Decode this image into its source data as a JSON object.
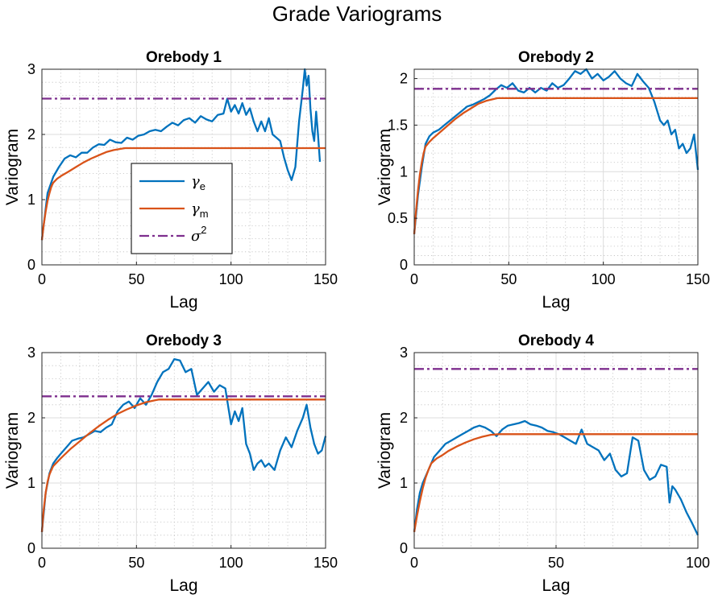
{
  "figure": {
    "title": "Grade Variograms"
  },
  "colors": {
    "experimental": "#0072BD",
    "model": "#D95319",
    "sill": "#7E2F8E",
    "grid_major": "#dcdcdc",
    "grid_minor": "#bfbfbf"
  },
  "legend": {
    "entries": [
      {
        "series": "experimental",
        "symbol": "γ",
        "sub": "e",
        "sup": ""
      },
      {
        "series": "model",
        "symbol": "γ",
        "sub": "m",
        "sup": ""
      },
      {
        "series": "sill",
        "symbol": "σ",
        "sub": "",
        "sup": "2"
      }
    ]
  },
  "chart_data": [
    {
      "type": "line",
      "title": "Orebody 1",
      "xlabel": "Lag",
      "ylabel": "Variogram",
      "xlim": [
        0,
        150
      ],
      "ylim": [
        0,
        3
      ],
      "xticks": [
        0,
        50,
        100,
        150
      ],
      "yticks": [
        0,
        1,
        2,
        3
      ],
      "grid": true,
      "legend_position": "center",
      "series": [
        {
          "name": "γe",
          "style": "solid",
          "x": [
            0,
            3,
            6,
            9,
            12,
            15,
            18,
            21,
            24,
            27,
            30,
            33,
            36,
            39,
            42,
            45,
            48,
            51,
            54,
            57,
            60,
            63,
            66,
            69,
            72,
            75,
            78,
            81,
            84,
            87,
            90,
            93,
            96,
            98,
            100,
            102,
            104,
            106,
            108,
            110,
            112,
            114,
            116,
            118,
            120,
            122,
            124,
            126,
            128,
            130,
            132,
            134,
            136,
            138,
            139,
            140,
            141,
            142,
            143,
            144,
            145,
            146,
            147
          ],
          "values": [
            0.38,
            1.1,
            1.35,
            1.5,
            1.63,
            1.68,
            1.65,
            1.72,
            1.72,
            1.8,
            1.85,
            1.84,
            1.92,
            1.88,
            1.87,
            1.95,
            1.92,
            1.98,
            2.0,
            2.05,
            2.07,
            2.05,
            2.12,
            2.18,
            2.14,
            2.22,
            2.25,
            2.18,
            2.28,
            2.23,
            2.2,
            2.3,
            2.32,
            2.55,
            2.35,
            2.45,
            2.32,
            2.48,
            2.3,
            2.4,
            2.2,
            2.05,
            2.2,
            2.05,
            2.25,
            2.0,
            1.95,
            1.9,
            1.65,
            1.45,
            1.3,
            1.5,
            2.2,
            2.7,
            3.0,
            2.75,
            2.9,
            2.4,
            2.05,
            1.9,
            2.35,
            2.0,
            1.58
          ]
        },
        {
          "name": "γm",
          "style": "solid",
          "x": [
            0,
            1,
            2,
            3,
            4,
            5,
            6,
            8,
            10,
            14,
            18,
            22,
            26,
            30,
            34,
            38,
            42,
            44,
            60,
            80,
            100,
            120,
            150
          ],
          "values": [
            0.38,
            0.62,
            0.82,
            0.98,
            1.1,
            1.2,
            1.26,
            1.32,
            1.36,
            1.43,
            1.5,
            1.57,
            1.63,
            1.68,
            1.73,
            1.76,
            1.78,
            1.79,
            1.79,
            1.79,
            1.79,
            1.79,
            1.79
          ]
        },
        {
          "name": "σ2",
          "style": "dashdot",
          "x": [
            0,
            150
          ],
          "values": [
            2.55,
            2.55
          ]
        }
      ]
    },
    {
      "type": "line",
      "title": "Orebody 2",
      "xlabel": "Lag",
      "ylabel": "Variogram",
      "xlim": [
        0,
        150
      ],
      "ylim": [
        0,
        2.1
      ],
      "xticks": [
        0,
        50,
        100,
        150
      ],
      "yticks": [
        0,
        0.5,
        1,
        1.5,
        2
      ],
      "grid": true,
      "series": [
        {
          "name": "γe",
          "style": "solid",
          "x": [
            0,
            2,
            4,
            6,
            8,
            10,
            13,
            16,
            19,
            22,
            25,
            28,
            31,
            34,
            37,
            40,
            43,
            46,
            49,
            52,
            55,
            58,
            61,
            64,
            67,
            70,
            73,
            76,
            79,
            82,
            85,
            88,
            91,
            94,
            97,
            100,
            103,
            106,
            109,
            112,
            115,
            118,
            121,
            124,
            127,
            130,
            132,
            134,
            136,
            138,
            140,
            142,
            144,
            146,
            148,
            150
          ],
          "values": [
            0.33,
            0.75,
            1.05,
            1.3,
            1.38,
            1.42,
            1.45,
            1.5,
            1.55,
            1.6,
            1.65,
            1.7,
            1.72,
            1.75,
            1.78,
            1.82,
            1.88,
            1.93,
            1.9,
            1.95,
            1.87,
            1.85,
            1.9,
            1.85,
            1.9,
            1.87,
            1.95,
            1.9,
            1.93,
            2.0,
            2.08,
            2.05,
            2.1,
            2.0,
            2.05,
            1.98,
            2.02,
            2.08,
            2.0,
            1.95,
            1.92,
            2.05,
            1.97,
            1.9,
            1.75,
            1.55,
            1.5,
            1.55,
            1.4,
            1.45,
            1.25,
            1.3,
            1.2,
            1.25,
            1.4,
            1.02
          ]
        },
        {
          "name": "γm",
          "style": "solid",
          "x": [
            0,
            1,
            2,
            3,
            4,
            5,
            6,
            8,
            10,
            14,
            18,
            22,
            26,
            30,
            34,
            38,
            42,
            44,
            60,
            80,
            100,
            120,
            150
          ],
          "values": [
            0.33,
            0.58,
            0.8,
            0.97,
            1.1,
            1.2,
            1.27,
            1.32,
            1.36,
            1.43,
            1.5,
            1.57,
            1.63,
            1.68,
            1.73,
            1.76,
            1.78,
            1.79,
            1.79,
            1.79,
            1.79,
            1.79,
            1.79
          ]
        },
        {
          "name": "σ2",
          "style": "dashdot",
          "x": [
            0,
            150
          ],
          "values": [
            1.89,
            1.89
          ]
        }
      ]
    },
    {
      "type": "line",
      "title": "Orebody 3",
      "xlabel": "Lag",
      "ylabel": "Variogram",
      "xlim": [
        0,
        150
      ],
      "ylim": [
        0,
        3
      ],
      "xticks": [
        0,
        50,
        100,
        150
      ],
      "yticks": [
        0,
        1,
        2,
        3
      ],
      "grid": true,
      "series": [
        {
          "name": "γe",
          "style": "solid",
          "x": [
            0,
            2,
            4,
            6,
            8,
            10,
            13,
            16,
            19,
            22,
            25,
            28,
            31,
            34,
            37,
            40,
            43,
            46,
            49,
            52,
            55,
            58,
            61,
            64,
            67,
            70,
            73,
            76,
            79,
            82,
            85,
            88,
            91,
            94,
            97,
            100,
            102,
            104,
            106,
            108,
            110,
            112,
            114,
            116,
            118,
            120,
            123,
            126,
            129,
            132,
            135,
            138,
            140,
            142,
            144,
            146,
            148,
            150
          ],
          "values": [
            0.25,
            0.85,
            1.15,
            1.3,
            1.38,
            1.45,
            1.55,
            1.65,
            1.68,
            1.7,
            1.75,
            1.8,
            1.78,
            1.85,
            1.9,
            2.1,
            2.2,
            2.25,
            2.15,
            2.3,
            2.2,
            2.35,
            2.55,
            2.7,
            2.75,
            2.9,
            2.88,
            2.7,
            2.75,
            2.35,
            2.45,
            2.55,
            2.4,
            2.5,
            2.45,
            1.9,
            2.1,
            1.95,
            2.15,
            1.6,
            1.45,
            1.2,
            1.3,
            1.35,
            1.25,
            1.3,
            1.2,
            1.5,
            1.7,
            1.55,
            1.8,
            2.0,
            2.2,
            1.85,
            1.6,
            1.45,
            1.5,
            1.72
          ]
        },
        {
          "name": "γm",
          "style": "solid",
          "x": [
            0,
            1,
            2,
            3,
            4,
            5,
            6,
            8,
            10,
            15,
            20,
            25,
            30,
            35,
            40,
            45,
            50,
            55,
            60,
            62,
            80,
            100,
            120,
            150
          ],
          "values": [
            0.25,
            0.6,
            0.85,
            1.02,
            1.13,
            1.2,
            1.26,
            1.32,
            1.38,
            1.52,
            1.64,
            1.76,
            1.87,
            1.97,
            2.06,
            2.13,
            2.19,
            2.24,
            2.27,
            2.28,
            2.28,
            2.28,
            2.28,
            2.28
          ]
        },
        {
          "name": "σ2",
          "style": "dashdot",
          "x": [
            0,
            150
          ],
          "values": [
            2.33,
            2.33
          ]
        }
      ]
    },
    {
      "type": "line",
      "title": "Orebody 4",
      "xlabel": "Lag",
      "ylabel": "Variogram",
      "xlim": [
        0,
        100
      ],
      "ylim": [
        0,
        3
      ],
      "xticks": [
        0,
        50,
        100
      ],
      "yticks": [
        0,
        1,
        2,
        3
      ],
      "grid": true,
      "series": [
        {
          "name": "γe",
          "style": "solid",
          "x": [
            0,
            1,
            2,
            3,
            5,
            7,
            9,
            11,
            13,
            15,
            17,
            19,
            21,
            23,
            25,
            27,
            29,
            31,
            33,
            35,
            37,
            39,
            41,
            43,
            45,
            47,
            49,
            51,
            53,
            55,
            57,
            59,
            61,
            63,
            65,
            67,
            69,
            71,
            73,
            75,
            77,
            79,
            81,
            83,
            85,
            87,
            89,
            90,
            91,
            92,
            94,
            96,
            98,
            100
          ],
          "values": [
            0.25,
            0.6,
            0.85,
            1.0,
            1.2,
            1.4,
            1.5,
            1.6,
            1.65,
            1.7,
            1.75,
            1.8,
            1.85,
            1.88,
            1.85,
            1.8,
            1.72,
            1.82,
            1.88,
            1.9,
            1.92,
            1.95,
            1.9,
            1.88,
            1.85,
            1.8,
            1.78,
            1.75,
            1.7,
            1.65,
            1.6,
            1.82,
            1.6,
            1.55,
            1.5,
            1.35,
            1.45,
            1.2,
            1.1,
            1.15,
            1.7,
            1.65,
            1.2,
            1.05,
            1.1,
            1.28,
            1.25,
            0.7,
            0.95,
            0.9,
            0.75,
            0.55,
            0.38,
            0.2
          ]
        },
        {
          "name": "γm",
          "style": "solid",
          "x": [
            0,
            1,
            2,
            3,
            4,
            5,
            6,
            8,
            10,
            12,
            15,
            18,
            21,
            24,
            27,
            30,
            40,
            60,
            80,
            100
          ],
          "values": [
            0.25,
            0.5,
            0.72,
            0.92,
            1.08,
            1.2,
            1.3,
            1.38,
            1.43,
            1.49,
            1.56,
            1.62,
            1.67,
            1.71,
            1.74,
            1.75,
            1.75,
            1.75,
            1.75,
            1.75
          ]
        },
        {
          "name": "σ2",
          "style": "dashdot",
          "x": [
            0,
            100
          ],
          "values": [
            2.75,
            2.75
          ]
        }
      ]
    }
  ]
}
